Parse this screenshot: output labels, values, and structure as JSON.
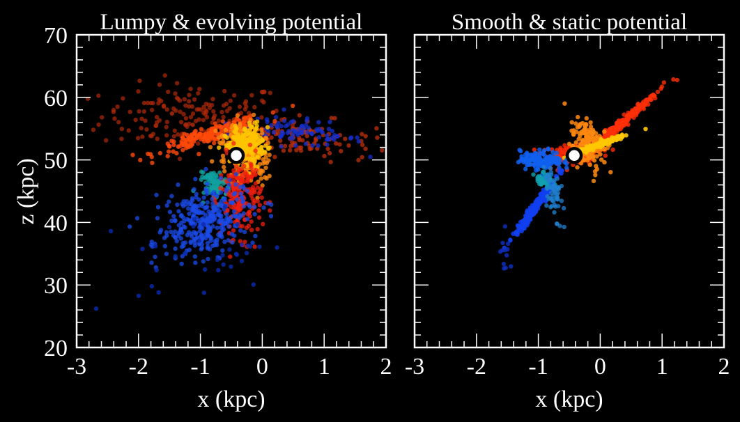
{
  "chart_data": [
    {
      "type": "scatter",
      "title": "Lumpy & evolving potential",
      "xlabel": "x (kpc)",
      "ylabel": "z (kpc)",
      "xlim": [
        -3,
        2
      ],
      "ylim": [
        20,
        70
      ],
      "xticks": [
        "-3",
        "-2",
        "-1",
        "0",
        "1",
        "2"
      ],
      "yticks": [
        "20",
        "30",
        "40",
        "50",
        "60",
        "70"
      ],
      "grid": false,
      "background": "#000000",
      "marker": {
        "x": -0.42,
        "z": 50.7,
        "label": "progenitor",
        "fill": "#ffffff",
        "edge": "#000000"
      },
      "clusters": [
        {
          "name": "diffuse-red-upper-left",
          "color": "#b02a0a",
          "n": 170,
          "cx": -1.1,
          "cz": 57.0,
          "sx": 0.75,
          "sz": 2.6,
          "rot": 0,
          "alpha": 0.7
        },
        {
          "name": "diffuse-red-right-arm",
          "color": "#c0300c",
          "n": 110,
          "cx": 0.6,
          "cz": 53.5,
          "sx": 0.6,
          "sz": 1.6,
          "rot": -0.1,
          "alpha": 0.75
        },
        {
          "name": "blue-right-arm",
          "color": "#1530d0",
          "n": 90,
          "cx": 0.55,
          "cz": 54.5,
          "sx": 0.55,
          "sz": 1.0,
          "rot": -0.12,
          "alpha": 0.75
        },
        {
          "name": "orange-tail-left",
          "color": "#ff4a0a",
          "n": 180,
          "cx": -0.85,
          "cz": 54.0,
          "sx": 0.45,
          "sz": 0.6,
          "rot": 0.3,
          "alpha": 0.8
        },
        {
          "name": "orange-core",
          "color": "#ff8a10",
          "n": 260,
          "cx": -0.3,
          "cz": 51.0,
          "sx": 0.18,
          "sz": 2.6,
          "rot": 0.35,
          "alpha": 0.8
        },
        {
          "name": "yellow-core",
          "color": "#ffc400",
          "n": 200,
          "cx": -0.25,
          "cz": 52.5,
          "sx": 0.15,
          "sz": 1.5,
          "rot": 0.25,
          "alpha": 0.85
        },
        {
          "name": "teal-lower",
          "color": "#10a0a0",
          "n": 80,
          "cx": -0.75,
          "cz": 46.0,
          "sx": 0.1,
          "sz": 1.2,
          "rot": 0.3,
          "alpha": 0.8
        },
        {
          "name": "red-lower-stream",
          "color": "#f02010",
          "n": 200,
          "cx": -0.35,
          "cz": 44.0,
          "sx": 0.17,
          "sz": 3.2,
          "rot": 0.05,
          "alpha": 0.75
        },
        {
          "name": "blue-lower-stream",
          "color": "#1b4be8",
          "n": 330,
          "cx": -0.95,
          "cz": 40.0,
          "sx": 0.38,
          "sz": 2.7,
          "rot": 0.35,
          "alpha": 0.75
        },
        {
          "name": "blue-sparse-lower",
          "color": "#0a2ab0",
          "n": 35,
          "cx": -1.0,
          "cz": 35.0,
          "sx": 0.55,
          "sz": 3.5,
          "rot": 0.2,
          "alpha": 0.8
        }
      ]
    },
    {
      "type": "scatter",
      "title": "Smooth & static potential",
      "xlabel": "x (kpc)",
      "ylabel": "",
      "xlim": [
        -3,
        2
      ],
      "ylim": [
        20,
        70
      ],
      "xticks": [
        "-3",
        "-2",
        "-1",
        "0",
        "1",
        "2"
      ],
      "yticks": [],
      "grid": false,
      "background": "#000000",
      "marker": {
        "x": -0.42,
        "z": 50.7,
        "label": "progenitor",
        "fill": "#ffffff",
        "edge": "#000000"
      },
      "clusters": [
        {
          "name": "red-upper-stream",
          "color": "#ff3008",
          "n": 260,
          "cx": 0.3,
          "cz": 55.5,
          "sx": 0.42,
          "sz": 0.35,
          "rot": 0.72,
          "alpha": 0.8
        },
        {
          "name": "red-core",
          "color": "#ff2a05",
          "n": 120,
          "cx": -0.45,
          "cz": 51.0,
          "sx": 0.25,
          "sz": 0.8,
          "rot": 0.1,
          "alpha": 0.8
        },
        {
          "name": "orange-core",
          "color": "#ff8a10",
          "n": 160,
          "cx": -0.2,
          "cz": 52.5,
          "sx": 0.12,
          "sz": 2.0,
          "rot": 0.2,
          "alpha": 0.85
        },
        {
          "name": "yellow-jet",
          "color": "#ffc800",
          "n": 120,
          "cx": -0.05,
          "cz": 52.3,
          "sx": 0.25,
          "sz": 0.2,
          "rot": 0.35,
          "alpha": 0.9
        },
        {
          "name": "blue-blob",
          "color": "#1060f0",
          "n": 150,
          "cx": -0.95,
          "cz": 50.0,
          "sx": 0.17,
          "sz": 0.75,
          "rot": 0,
          "alpha": 0.85
        },
        {
          "name": "blue-lower-stream",
          "color": "#1040f0",
          "n": 230,
          "cx": -1.05,
          "cz": 42.5,
          "sx": 0.28,
          "sz": 0.28,
          "rot": 0.95,
          "alpha": 0.85
        },
        {
          "name": "teal-lower",
          "color": "#10a0b0",
          "n": 40,
          "cx": -0.9,
          "cz": 46.5,
          "sx": 0.06,
          "sz": 0.8,
          "rot": 0.4,
          "alpha": 0.8
        },
        {
          "name": "lightblue-lower",
          "color": "#2080d0",
          "n": 60,
          "cx": -0.75,
          "cz": 45.0,
          "sx": 0.06,
          "sz": 2.2,
          "rot": 0.25,
          "alpha": 0.75
        },
        {
          "name": "blue-stream-tip",
          "color": "#1030c0",
          "n": 12,
          "cx": -1.5,
          "cz": 35.0,
          "sx": 0.06,
          "sz": 1.6,
          "rot": 0.2,
          "alpha": 0.8
        }
      ]
    }
  ]
}
